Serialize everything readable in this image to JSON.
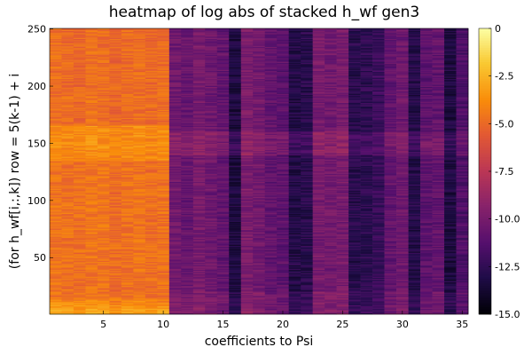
{
  "chart_data": {
    "type": "heatmap",
    "title": "heatmap of log abs of stacked h_wf gen3",
    "xlabel": "coefficients to Psi",
    "ylabel": "(for h_wf[i,:,k]) row = 5(k-1) + i",
    "x_range": [
      1,
      35
    ],
    "y_range": [
      1,
      250
    ],
    "xticks": [
      5,
      10,
      15,
      20,
      25,
      30,
      35
    ],
    "yticks": [
      50,
      100,
      150,
      200,
      250
    ],
    "colorbar": {
      "range": [
        -15.0,
        0
      ],
      "ticks": [
        0,
        -2.5,
        -5.0,
        -7.5,
        -10.0,
        -12.5,
        -15.0
      ],
      "tick_labels": [
        "0",
        "-2.5",
        "-5.0",
        "-7.5",
        "-10.0",
        "-12.5",
        "-15.0"
      ],
      "colormap": "inferno"
    },
    "column_base_values": [
      -4.6,
      -4.7,
      -4.8,
      -4.5,
      -4.6,
      -4.9,
      -4.7,
      -4.6,
      -4.8,
      -4.7,
      -10.3,
      -10.6,
      -10.0,
      -10.4,
      -10.8,
      -13.2,
      -9.9,
      -10.2,
      -10.8,
      -11.0,
      -13.0,
      -12.8,
      -10.0,
      -10.2,
      -10.0,
      -12.8,
      -12.6,
      -12.2,
      -10.8,
      -10.4,
      -13.0,
      -11.0,
      -10.8,
      -13.2,
      -11.5
    ],
    "row_pattern": "left block brightest near rows 1-15 and 135-165; right block slightly brighter near rows 140-160 and 1-20",
    "grid": false,
    "legend": "none"
  }
}
